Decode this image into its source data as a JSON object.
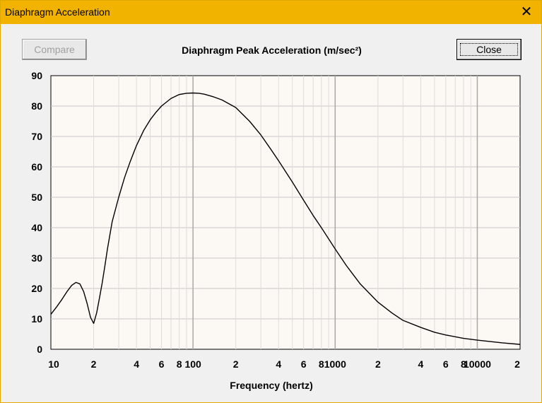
{
  "window": {
    "title": "Diaphragm Acceleration",
    "close_glyph": "✕"
  },
  "toolbar": {
    "compare_label": "Compare",
    "close_label": "Close"
  },
  "chart_data": {
    "type": "line",
    "title": "Diaphragm Peak Acceleration (m/sec²)",
    "xlabel": "Frequency (hertz)",
    "ylabel": "",
    "x_scale": "log",
    "xlim": [
      10,
      20000
    ],
    "ylim": [
      0,
      90
    ],
    "grid": true,
    "y_ticks": [
      0,
      10,
      20,
      30,
      40,
      50,
      60,
      70,
      80,
      90
    ],
    "x_ticks": [
      {
        "value": 10,
        "label": "10"
      },
      {
        "value": 20,
        "label": "2"
      },
      {
        "value": 40,
        "label": "4"
      },
      {
        "value": 60,
        "label": "6"
      },
      {
        "value": 80,
        "label": "8"
      },
      {
        "value": 100,
        "label": "100"
      },
      {
        "value": 200,
        "label": "2"
      },
      {
        "value": 400,
        "label": "4"
      },
      {
        "value": 600,
        "label": "6"
      },
      {
        "value": 800,
        "label": "8"
      },
      {
        "value": 1000,
        "label": "1000"
      },
      {
        "value": 2000,
        "label": "2"
      },
      {
        "value": 4000,
        "label": "4"
      },
      {
        "value": 6000,
        "label": "6"
      },
      {
        "value": 8000,
        "label": "8"
      },
      {
        "value": 10000,
        "label": "10000"
      },
      {
        "value": 20000,
        "label": "2"
      }
    ],
    "series": [
      {
        "x": [
          10,
          11,
          12,
          13,
          14,
          15,
          16,
          17,
          18,
          19,
          20,
          21,
          22,
          23,
          24,
          25,
          27,
          30,
          33,
          36,
          40,
          45,
          50,
          55,
          60,
          70,
          80,
          90,
          100,
          110,
          120,
          140,
          160,
          200,
          250,
          300,
          350,
          400,
          500,
          600,
          700,
          800,
          1000,
          1200,
          1500,
          2000,
          2500,
          3000,
          4000,
          5000,
          6000,
          8000,
          10000,
          12000,
          15000,
          20000
        ],
        "y": [
          11.5,
          14,
          16.5,
          19,
          21,
          22,
          21.5,
          19,
          15,
          10.5,
          8.5,
          12,
          17,
          22,
          27.5,
          33,
          42,
          50,
          56.5,
          61.5,
          67,
          72,
          75.5,
          78,
          80,
          82.5,
          83.8,
          84.2,
          84.3,
          84.2,
          83.9,
          83,
          82,
          79.5,
          75,
          70.5,
          66,
          62,
          55,
          49,
          44,
          40,
          33,
          27.5,
          21.5,
          15.5,
          12,
          9.5,
          7.2,
          5.6,
          4.7,
          3.6,
          3,
          2.6,
          2.1,
          1.6
        ],
        "color": "#000000"
      }
    ]
  }
}
